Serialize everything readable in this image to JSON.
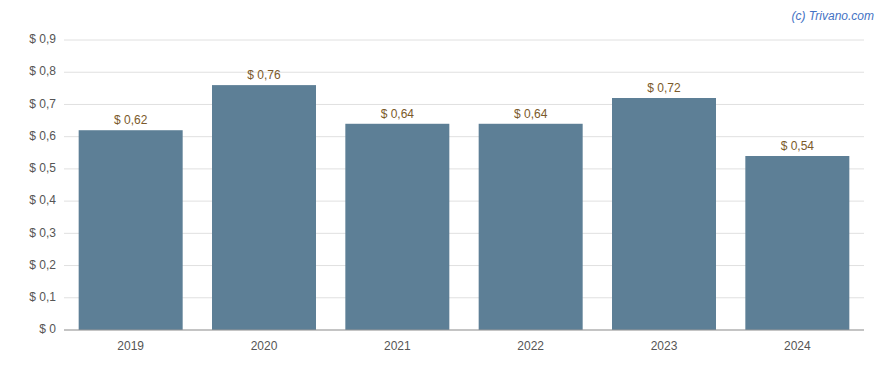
{
  "chart_data": {
    "type": "bar",
    "annotations": [
      "(c) Trivano.com"
    ],
    "categories": [
      "2019",
      "2020",
      "2021",
      "2022",
      "2023",
      "2024"
    ],
    "values": [
      0.62,
      0.76,
      0.64,
      0.64,
      0.72,
      0.54
    ],
    "value_labels": [
      "$ 0,62",
      "$ 0,76",
      "$ 0,64",
      "$ 0,64",
      "$ 0,72",
      "$ 0,54"
    ],
    "color": "#5d7f96",
    "ylim": [
      0,
      0.9
    ],
    "yticks": [
      {
        "value": 0,
        "label": "$ 0"
      },
      {
        "value": 0.1,
        "label": "$ 0,1"
      },
      {
        "value": 0.2,
        "label": "$ 0,2"
      },
      {
        "value": 0.3,
        "label": "$ 0,3"
      },
      {
        "value": 0.4,
        "label": "$ 0,4"
      },
      {
        "value": 0.5,
        "label": "$ 0,5"
      },
      {
        "value": 0.6,
        "label": "$ 0,6"
      },
      {
        "value": 0.7,
        "label": "$ 0,7"
      },
      {
        "value": 0.8,
        "label": "$ 0,8"
      },
      {
        "value": 0.9,
        "label": "$ 0,9"
      }
    ],
    "grid": true,
    "data_labels": true
  }
}
